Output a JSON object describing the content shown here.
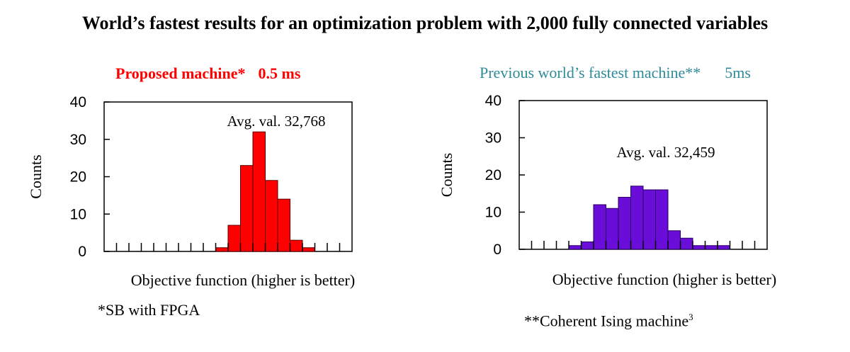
{
  "title": "World’s fastest results for an optimization problem with 2,000 fully connected variables",
  "left": {
    "subtitle_label": "Proposed machine*",
    "subtitle_time": "0.5 ms",
    "subtitle_color": "#ff0000",
    "footnote": "*SB with FPGA"
  },
  "right": {
    "subtitle_label": "Previous world’s fastest machine**",
    "subtitle_time": "5ms",
    "subtitle_color": "#2e8b9a",
    "footnote_text": "**Coherent Ising machine",
    "footnote_sup": "3"
  },
  "chart_data": [
    {
      "type": "bar",
      "title": "Proposed machine* 0.5 ms",
      "xlabel": "Objective function (higher is better)",
      "ylabel": "Counts",
      "ylim": [
        0,
        40
      ],
      "yticks": [
        0,
        10,
        20,
        30,
        40
      ],
      "bin_count": 20,
      "bins_start_index": 9,
      "values": [
        1,
        7,
        23,
        32,
        19,
        14,
        3,
        1
      ],
      "annotation": "Avg. val. 32,768",
      "bar_color": "#ff0000",
      "bar_edge_color": "#5a0000",
      "grid": false
    },
    {
      "type": "bar",
      "title": "Previous world’s fastest machine** 5ms",
      "xlabel": "Objective function (higher is better)",
      "ylabel": "Counts",
      "ylim": [
        0,
        40
      ],
      "yticks": [
        0,
        10,
        20,
        30,
        40
      ],
      "bin_count": 20,
      "bins_start_index": 4,
      "values": [
        1,
        2,
        12,
        11,
        14,
        17,
        16,
        16,
        5,
        3,
        1,
        1,
        1
      ],
      "annotation": "Avg. val. 32,459",
      "bar_color": "#6a0dd8",
      "bar_edge_color": "#2a0060",
      "grid": false
    }
  ]
}
